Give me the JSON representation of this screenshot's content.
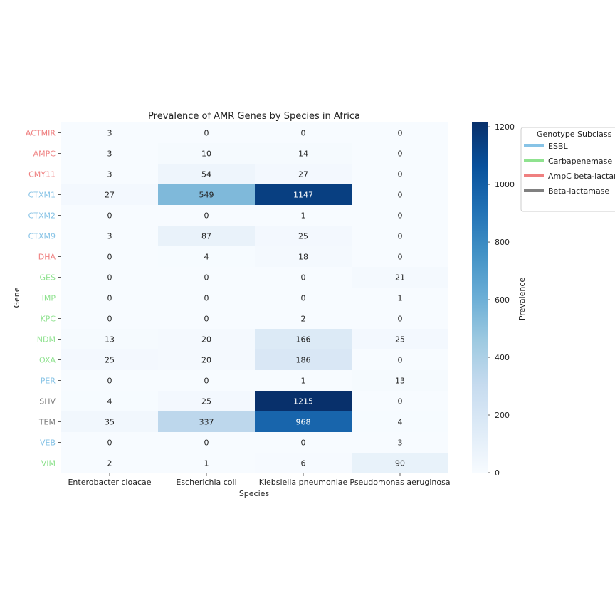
{
  "chart_data": {
    "type": "heatmap",
    "title": "Prevalence of AMR Genes by Species in Africa",
    "xlabel": "Species",
    "ylabel": "Gene",
    "x_categories": [
      "Enterobacter cloacae",
      "Escherichia coli",
      "Klebsiella pneumoniae",
      "Pseudomonas aeruginosa"
    ],
    "y_categories": [
      "ACTMIR",
      "AMPC",
      "CMY11",
      "CTXM1",
      "CTXM2",
      "CTXM9",
      "DHA",
      "GES",
      "IMP",
      "KPC",
      "NDM",
      "OXA",
      "PER",
      "SHV",
      "TEM",
      "VEB",
      "VIM"
    ],
    "gene_subclass": [
      "AmpC beta-lactamase",
      "AmpC beta-lactamase",
      "AmpC beta-lactamase",
      "ESBL",
      "ESBL",
      "ESBL",
      "AmpC beta-lactamase",
      "Carbapenemase",
      "Carbapenemase",
      "Carbapenemase",
      "Carbapenemase",
      "Carbapenemase",
      "ESBL",
      "Beta-lactamase",
      "Beta-lactamase",
      "ESBL",
      "Carbapenemase"
    ],
    "values": [
      [
        3,
        0,
        0,
        0
      ],
      [
        3,
        10,
        14,
        0
      ],
      [
        3,
        54,
        27,
        0
      ],
      [
        27,
        549,
        1147,
        0
      ],
      [
        0,
        0,
        1,
        0
      ],
      [
        3,
        87,
        25,
        0
      ],
      [
        0,
        4,
        18,
        0
      ],
      [
        0,
        0,
        0,
        21
      ],
      [
        0,
        0,
        0,
        1
      ],
      [
        0,
        0,
        2,
        0
      ],
      [
        13,
        20,
        166,
        25
      ],
      [
        25,
        20,
        186,
        0
      ],
      [
        0,
        0,
        1,
        13
      ],
      [
        4,
        25,
        1215,
        0
      ],
      [
        35,
        337,
        968,
        4
      ],
      [
        0,
        0,
        0,
        3
      ],
      [
        2,
        1,
        6,
        90
      ]
    ],
    "colorbar": {
      "label": "Prevalence",
      "min": 0,
      "max": 1215,
      "ticks": [
        0,
        200,
        400,
        600,
        800,
        1000,
        1200
      ],
      "colormap": "Blues"
    },
    "legend": {
      "title": "Genotype Subclass",
      "placement": "right",
      "entries": [
        {
          "label": "ESBL",
          "color": "#87c3e6"
        },
        {
          "label": "Carbapenemase",
          "color": "#8fe28f"
        },
        {
          "label": "AmpC beta-lactamase",
          "color": "#ef8080"
        },
        {
          "label": "Beta-lactamase",
          "color": "#808080"
        }
      ]
    }
  }
}
